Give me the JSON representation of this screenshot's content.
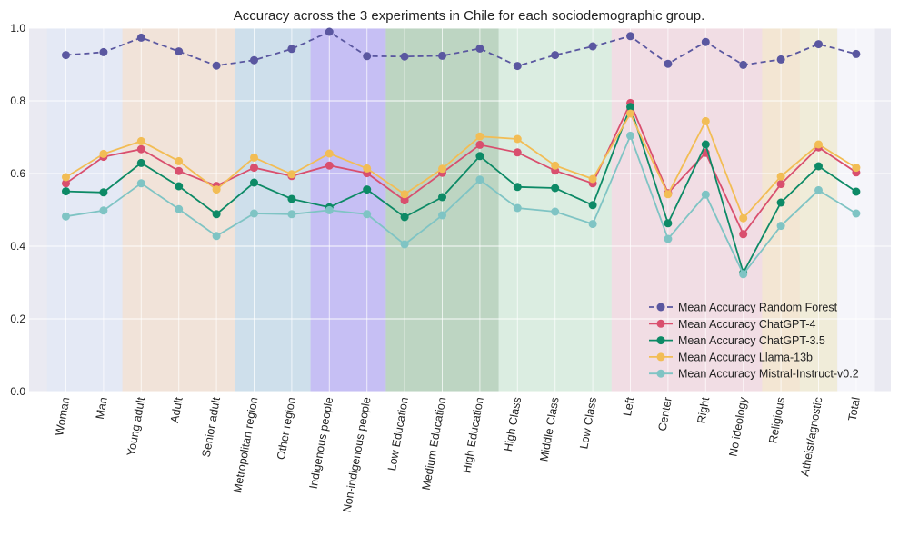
{
  "chart_data": {
    "type": "line",
    "title": "Accuracy across the 3 experiments in Chile for each sociodemographic group.",
    "xlabel": "",
    "ylabel": "",
    "ylim": [
      0.0,
      1.0
    ],
    "yticks": [
      "0.0",
      "0.2",
      "0.4",
      "0.6",
      "0.8",
      "1.0"
    ],
    "grid": true,
    "legend_position": "lower-right",
    "categories": [
      "Woman",
      "Man",
      "Young adult",
      "Adult",
      "Senior adult",
      "Metropolitan region",
      "Other region",
      "Indigenous people",
      "Non-indigenous people",
      "Low Education",
      "Medium Education",
      "High Education",
      "High Class",
      "Middle Class",
      "Low Class",
      "Left",
      "Center",
      "Right",
      "No ideology",
      "Religious",
      "Atheist/agnostic",
      "Total"
    ],
    "bands": [
      {
        "start": 0,
        "end": 1,
        "color": "#dfe8f7",
        "opacity": 0.55
      },
      {
        "start": 2,
        "end": 4,
        "color": "#f5dcc4",
        "opacity": 0.55
      },
      {
        "start": 5,
        "end": 6,
        "color": "#b7d5e6",
        "opacity": 0.55
      },
      {
        "start": 7,
        "end": 8,
        "color": "#a79bf5",
        "opacity": 0.55
      },
      {
        "start": 9,
        "end": 11,
        "color": "#97c29a",
        "opacity": 0.55
      },
      {
        "start": 12,
        "end": 14,
        "color": "#cdeed3",
        "opacity": 0.55
      },
      {
        "start": 15,
        "end": 19,
        "color": "#f6d1d9",
        "opacity": 0.55
      },
      {
        "start": 19,
        "end": 20,
        "color": "#f4ecc4",
        "opacity": 0.55
      },
      {
        "start": 21,
        "end": 21,
        "color": "#f7f7fb",
        "opacity": 0.8
      }
    ],
    "series": [
      {
        "name": "Mean Accuracy Random Forest",
        "color": "#5a57a0",
        "dashed": true,
        "values": [
          0.926,
          0.934,
          0.974,
          0.936,
          0.897,
          0.912,
          0.943,
          0.99,
          0.923,
          0.922,
          0.924,
          0.944,
          0.896,
          0.926,
          0.95,
          0.978,
          0.902,
          0.962,
          0.899,
          0.914,
          0.956,
          0.929
        ]
      },
      {
        "name": "Mean Accuracy ChatGPT-4",
        "color": "#d94f6e",
        "dashed": false,
        "values": [
          0.573,
          0.646,
          0.667,
          0.607,
          0.566,
          0.616,
          0.593,
          0.622,
          0.601,
          0.526,
          0.602,
          0.679,
          0.658,
          0.608,
          0.573,
          0.794,
          0.546,
          0.657,
          0.433,
          0.571,
          0.672,
          0.603
        ]
      },
      {
        "name": "Mean Accuracy ChatGPT-3.5",
        "color": "#0d8a66",
        "dashed": false,
        "values": [
          0.551,
          0.548,
          0.629,
          0.565,
          0.488,
          0.575,
          0.53,
          0.507,
          0.556,
          0.48,
          0.535,
          0.648,
          0.563,
          0.56,
          0.513,
          0.783,
          0.463,
          0.68,
          0.327,
          0.52,
          0.62,
          0.55
        ]
      },
      {
        "name": "Mean Accuracy Llama-13b",
        "color": "#f2bd55",
        "dashed": false,
        "values": [
          0.59,
          0.654,
          0.689,
          0.634,
          0.556,
          0.644,
          0.598,
          0.655,
          0.614,
          0.543,
          0.613,
          0.702,
          0.695,
          0.622,
          0.585,
          0.765,
          0.543,
          0.744,
          0.477,
          0.592,
          0.68,
          0.616
        ]
      },
      {
        "name": "Mean Accuracy Mistral-Instruct-v0.2",
        "color": "#7fc4c4",
        "dashed": false,
        "values": [
          0.482,
          0.498,
          0.573,
          0.502,
          0.428,
          0.49,
          0.488,
          0.499,
          0.488,
          0.405,
          0.485,
          0.583,
          0.505,
          0.495,
          0.461,
          0.704,
          0.42,
          0.542,
          0.323,
          0.456,
          0.554,
          0.49
        ]
      }
    ]
  }
}
